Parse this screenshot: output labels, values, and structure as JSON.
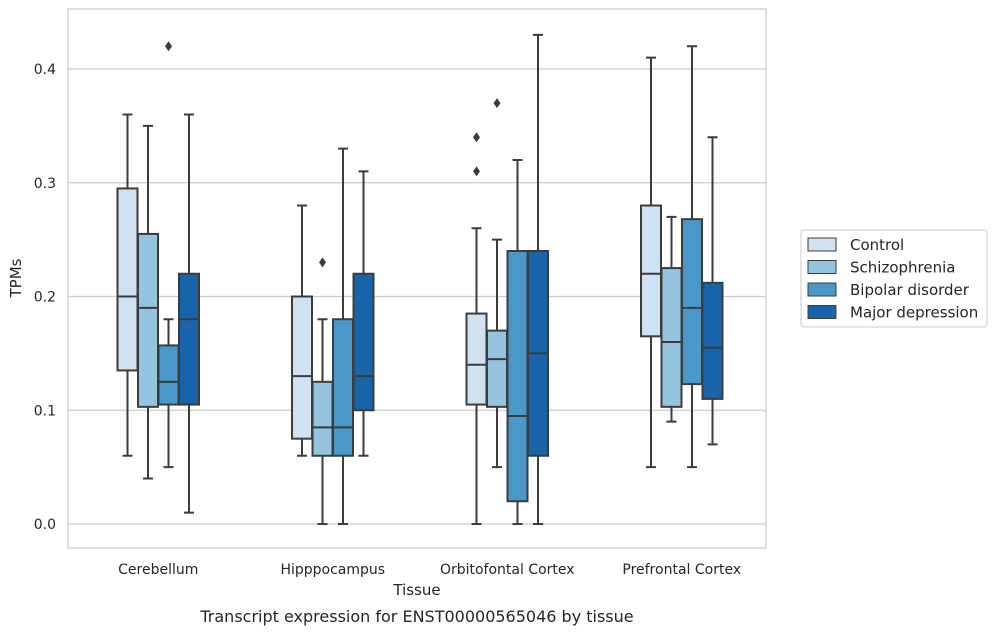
{
  "chart_data": {
    "type": "boxplot",
    "caption": "Transcript expression for ENST00000565046 by tissue",
    "xlabel": "Tissue",
    "ylabel": "TPMs",
    "ylim": [
      -0.02,
      0.455
    ],
    "yticks": [
      "0.0",
      "0.1",
      "0.2",
      "0.3",
      "0.4"
    ],
    "grid": true,
    "legend_position": "right",
    "categories": [
      "Cerebellum",
      "Hipppocampus",
      "Orbitofontal Cortex",
      "Prefrontal Cortex"
    ],
    "series": [
      {
        "name": "Control",
        "color": "#d0e1f2",
        "boxes": [
          {
            "whisker_low": 0.06,
            "q1": 0.135,
            "median": 0.2,
            "q3": 0.295,
            "whisker_high": 0.36,
            "outliers": []
          },
          {
            "whisker_low": 0.06,
            "q1": 0.075,
            "median": 0.13,
            "q3": 0.2,
            "whisker_high": 0.28,
            "outliers": []
          },
          {
            "whisker_low": 0.0,
            "q1": 0.105,
            "median": 0.14,
            "q3": 0.185,
            "whisker_high": 0.26,
            "outliers": [
              0.31,
              0.34
            ]
          },
          {
            "whisker_low": 0.05,
            "q1": 0.165,
            "median": 0.22,
            "q3": 0.28,
            "whisker_high": 0.41,
            "outliers": []
          }
        ]
      },
      {
        "name": "Schizophrenia",
        "color": "#94c4df",
        "boxes": [
          {
            "whisker_low": 0.04,
            "q1": 0.103,
            "median": 0.19,
            "q3": 0.255,
            "whisker_high": 0.35,
            "outliers": []
          },
          {
            "whisker_low": 0.0,
            "q1": 0.06,
            "median": 0.085,
            "q3": 0.125,
            "whisker_high": 0.18,
            "outliers": [
              0.23
            ]
          },
          {
            "whisker_low": 0.05,
            "q1": 0.103,
            "median": 0.145,
            "q3": 0.17,
            "whisker_high": 0.25,
            "outliers": [
              0.37
            ]
          },
          {
            "whisker_low": 0.09,
            "q1": 0.103,
            "median": 0.16,
            "q3": 0.225,
            "whisker_high": 0.27,
            "outliers": []
          }
        ]
      },
      {
        "name": "Bipolar disorder",
        "color": "#4a98c9",
        "boxes": [
          {
            "whisker_low": 0.05,
            "q1": 0.105,
            "median": 0.125,
            "q3": 0.157,
            "whisker_high": 0.18,
            "outliers": [
              0.42
            ]
          },
          {
            "whisker_low": 0.0,
            "q1": 0.06,
            "median": 0.085,
            "q3": 0.18,
            "whisker_high": 0.33,
            "outliers": []
          },
          {
            "whisker_low": 0.0,
            "q1": 0.02,
            "median": 0.095,
            "q3": 0.24,
            "whisker_high": 0.32,
            "outliers": []
          },
          {
            "whisker_low": 0.05,
            "q1": 0.123,
            "median": 0.19,
            "q3": 0.268,
            "whisker_high": 0.42,
            "outliers": []
          }
        ]
      },
      {
        "name": "Major depression",
        "color": "#1764ab",
        "boxes": [
          {
            "whisker_low": 0.01,
            "q1": 0.105,
            "median": 0.18,
            "q3": 0.22,
            "whisker_high": 0.36,
            "outliers": []
          },
          {
            "whisker_low": 0.06,
            "q1": 0.1,
            "median": 0.13,
            "q3": 0.22,
            "whisker_high": 0.31,
            "outliers": []
          },
          {
            "whisker_low": 0.0,
            "q1": 0.06,
            "median": 0.15,
            "q3": 0.24,
            "whisker_high": 0.43,
            "outliers": []
          },
          {
            "whisker_low": 0.07,
            "q1": 0.11,
            "median": 0.155,
            "q3": 0.212,
            "whisker_high": 0.34,
            "outliers": []
          }
        ]
      }
    ]
  }
}
